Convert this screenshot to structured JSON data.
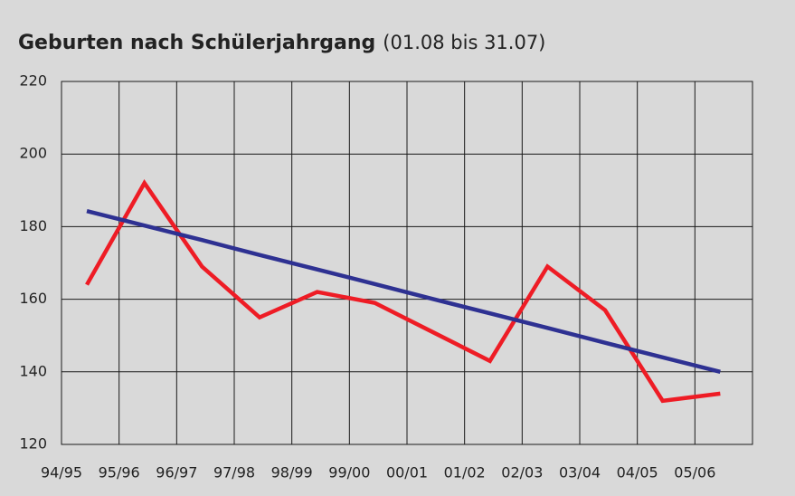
{
  "chart_data": {
    "type": "line",
    "title": "Geburten nach Schülerjahrgang",
    "subtitle": "(01.08 bis 31.07)",
    "categories": [
      "94/95",
      "95/96",
      "96/97",
      "97/98",
      "98/99",
      "99/00",
      "00/01",
      "01/02",
      "02/03",
      "03/04",
      "04/05",
      "05/06"
    ],
    "series": [
      {
        "color": "#ee1c25",
        "values": [
          164,
          192,
          169,
          155,
          162,
          159,
          151,
          143,
          169,
          157,
          132,
          134
        ]
      },
      {
        "color": "#2e3192",
        "values": [
          184.3,
          180.3,
          176.3,
          172.2,
          168.2,
          164.2,
          160.1,
          156.1,
          152.1,
          148.0,
          144.0,
          140.0
        ]
      }
    ],
    "ylim": [
      120,
      220
    ],
    "yticks": [
      120,
      140,
      160,
      180,
      200,
      220
    ],
    "grid": true
  }
}
